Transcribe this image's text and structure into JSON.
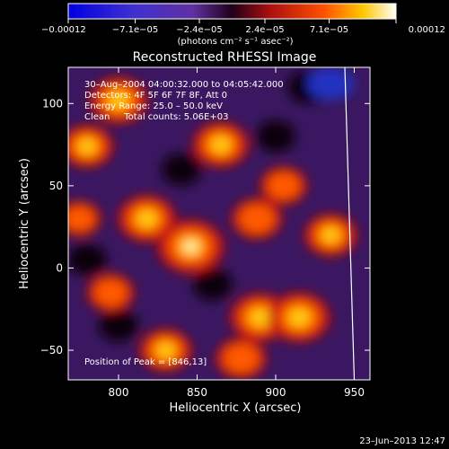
{
  "chart_data": {
    "type": "heatmap",
    "title": "Reconstructed RHESSI Image",
    "xlabel": "Heliocentric X (arcsec)",
    "ylabel": "Heliocentric Y (arcsec)",
    "xlim": [
      768,
      960
    ],
    "ylim": [
      -68,
      122
    ],
    "xticks": [
      800,
      850,
      900,
      950
    ],
    "yticks": [
      100,
      50,
      0,
      -50
    ],
    "xtick_labels": [
      "800",
      "850",
      "900",
      "950"
    ],
    "ytick_labels": [
      "100",
      "50",
      "0",
      "−50"
    ],
    "colorbar": {
      "range": [
        -0.00012,
        0.00012
      ],
      "ticks": [
        -0.00012,
        -7.1e-05,
        -2.4e-05,
        2.4e-05,
        7.1e-05,
        0.00012
      ],
      "tick_labels": [
        "−0.00012",
        "−7.1e−05",
        "−2.4e−05",
        "2.4e−05",
        "7.1e−05",
        "0.00012"
      ],
      "unit": "(photons cm⁻² s⁻¹ asec⁻²)"
    },
    "annotations": [
      "30–Aug–2004 04:00:32.000 to 04:05:42.000",
      "Detectors: 4F 5F 6F 7F 8F, Att 0",
      "Energy Range: 25.0 – 50.0 keV",
      "Clean     Total counts: 5.06E+03"
    ],
    "peak_label": "Position of Peak = [846,13]",
    "peak_position": [
      846,
      13
    ],
    "sources": [
      {
        "x": 846,
        "y": 13,
        "intensity": 1.0
      },
      {
        "x": 800,
        "y": 102,
        "intensity": 0.75
      },
      {
        "x": 780,
        "y": 74,
        "intensity": 0.6
      },
      {
        "x": 865,
        "y": 75,
        "intensity": 0.7
      },
      {
        "x": 818,
        "y": 30,
        "intensity": 0.75
      },
      {
        "x": 888,
        "y": 30,
        "intensity": 0.55
      },
      {
        "x": 905,
        "y": 50,
        "intensity": 0.45
      },
      {
        "x": 890,
        "y": -30,
        "intensity": 0.8
      },
      {
        "x": 915,
        "y": -30,
        "intensity": 0.85
      },
      {
        "x": 878,
        "y": -55,
        "intensity": 0.55
      },
      {
        "x": 935,
        "y": 20,
        "intensity": 0.6
      },
      {
        "x": 830,
        "y": -50,
        "intensity": 0.6
      },
      {
        "x": 795,
        "y": -15,
        "intensity": 0.45
      },
      {
        "x": 775,
        "y": 30,
        "intensity": 0.35
      }
    ],
    "limb_x_at_ymin": 950,
    "limb_x_at_ymax": 944
  },
  "footer": {
    "timestamp": "23–Jun–2013 12:47"
  }
}
